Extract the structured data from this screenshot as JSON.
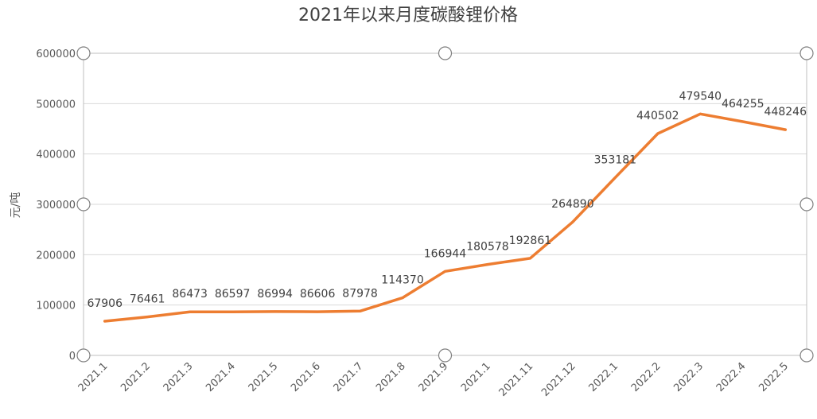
{
  "chart_data": {
    "type": "line",
    "title": "2021年以来月度碳酸锂价格",
    "xlabel": "",
    "ylabel": "元/吨",
    "ylim": [
      0,
      600000
    ],
    "yticks": [
      0,
      100000,
      200000,
      300000,
      400000,
      500000,
      600000
    ],
    "grid": true,
    "legend": "none",
    "categories": [
      "2021.1",
      "2021.2",
      "2021.3",
      "2021.4",
      "2021.5",
      "2021.6",
      "2021.7",
      "2021.8",
      "2021.9",
      "2021.1",
      "2021.11",
      "2021.12",
      "2022.1",
      "2022.2",
      "2022.3",
      "2022.4",
      "2022.5"
    ],
    "series": [
      {
        "color": "#ED7D31",
        "values": [
          67906,
          76461,
          86473,
          86597,
          86994,
          86606,
          87978,
          114370,
          166944,
          180578,
          192861,
          264890,
          353181,
          440502,
          479540,
          464255,
          448246
        ]
      }
    ]
  }
}
